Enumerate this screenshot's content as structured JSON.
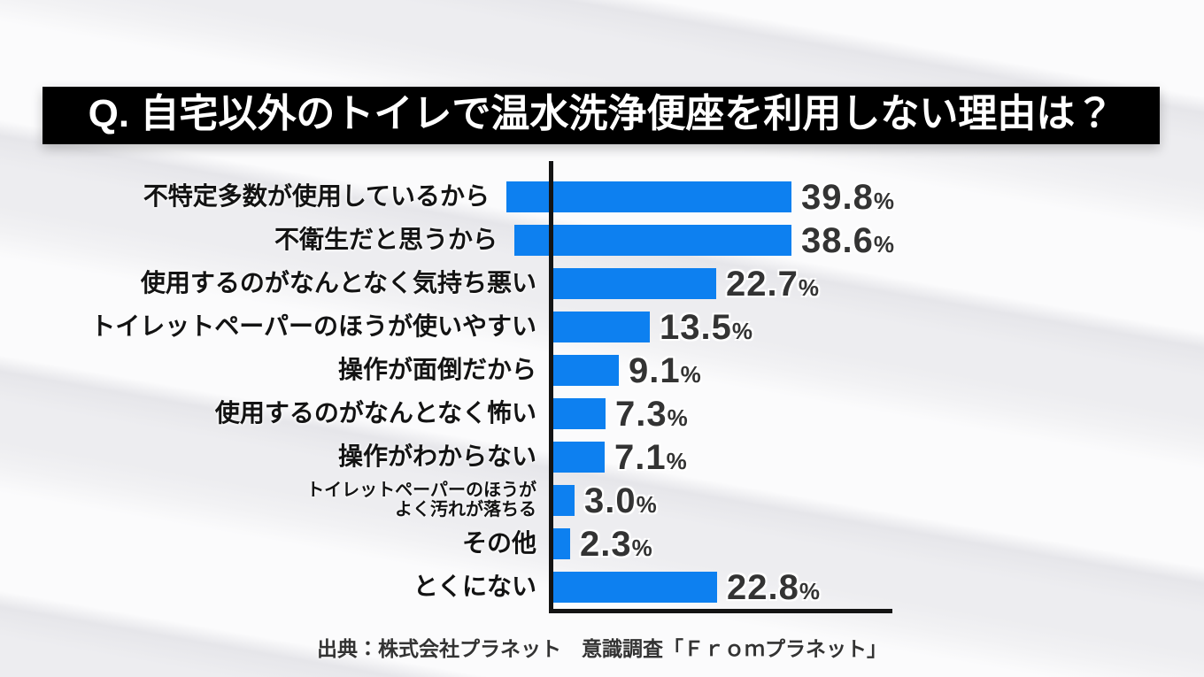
{
  "page": {
    "source": "出典：株式会社プラネット　意識調査「Ｆｒｏｍプラネット」"
  },
  "chart_data": {
    "type": "bar",
    "orientation": "horizontal",
    "title": "Q. 自宅以外のトイレで温水洗浄便座を利用しない理由は？",
    "unit": "%",
    "categories": [
      "不特定多数が使用しているから",
      "不衛生だと思うから",
      "使用するのがなんとなく気持ち悪い",
      "トイレットペーパーのほうが使いやすい",
      "操作が面倒だから",
      "使用するのがなんとなく怖い",
      "操作がわからない",
      "トイレットペーパーのほうが\nよく汚れが落ちる",
      "その他",
      "とくにない"
    ],
    "values": [
      39.8,
      38.6,
      22.7,
      13.5,
      9.1,
      7.3,
      7.1,
      3.0,
      2.3,
      22.8
    ],
    "value_labels": [
      "39.8",
      "38.6",
      "22.7",
      "13.5",
      "9.1",
      "7.3",
      "7.1",
      "3.0",
      "2.3",
      "22.8"
    ],
    "small_label_indices": [
      7
    ],
    "axis_max": 47.2,
    "xlim": [
      0,
      47.2
    ],
    "grid": false,
    "legend": "none",
    "bar_color": "#0d80f0",
    "axis_color": "#141414",
    "value_color": "#333333"
  }
}
